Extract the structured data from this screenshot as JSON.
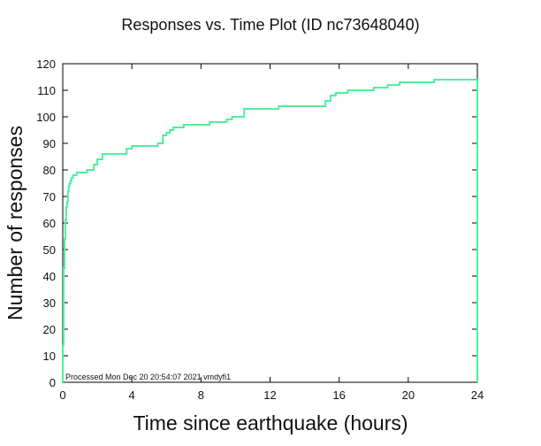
{
  "chart_data": {
    "type": "line",
    "title": "Responses vs. Time Plot (ID nc73648040)",
    "xlabel": "Time since earthquake (hours)",
    "ylabel": "Number of responses",
    "xlim": [
      0,
      24
    ],
    "ylim": [
      0,
      120
    ],
    "xticks": [
      0,
      4,
      8,
      12,
      16,
      20,
      24
    ],
    "yticks": [
      0,
      10,
      20,
      30,
      40,
      50,
      60,
      70,
      80,
      90,
      100,
      110,
      120
    ],
    "grid": false,
    "line_color": "#4cf0a0",
    "annotation": "Processed Mon Dec 20 20:54:07 2021 vmdyfi1",
    "series": [
      {
        "x": [
          0,
          0.05,
          0.1,
          0.15,
          0.2,
          0.25,
          0.3,
          0.35,
          0.4,
          0.45,
          0.5,
          0.55,
          0.6,
          0.7,
          0.8,
          0.95,
          1.1,
          1.4,
          1.8,
          2.0,
          2.1,
          2.3,
          2.5,
          3.0,
          3.5,
          3.7,
          4.0,
          4.5,
          5.0,
          5.5,
          5.8,
          6.0,
          6.2,
          6.4,
          6.6,
          7.0,
          7.8,
          8.5,
          9.0,
          9.5,
          9.8,
          10.5,
          11.5,
          12.0,
          12.5,
          13.5,
          14.5,
          15.0,
          15.2,
          15.5,
          15.8,
          16.5,
          17.5,
          18.0,
          18.3,
          18.8,
          19.5,
          20.5,
          21.5,
          22.5,
          23.5,
          24.0
        ],
        "y": [
          14,
          43,
          54,
          61,
          66,
          68,
          72,
          74,
          75,
          76,
          77,
          77,
          78,
          78,
          79,
          79,
          79,
          80,
          82,
          84,
          84,
          86,
          86,
          86,
          86,
          88,
          89,
          89,
          89,
          90,
          93,
          94,
          95,
          96,
          96,
          97,
          97,
          98,
          98,
          99,
          100,
          103,
          103,
          103,
          104,
          104,
          104,
          104,
          106,
          108,
          109,
          110,
          110,
          111,
          111,
          112,
          113,
          113,
          114,
          114,
          114,
          0
        ]
      }
    ]
  }
}
